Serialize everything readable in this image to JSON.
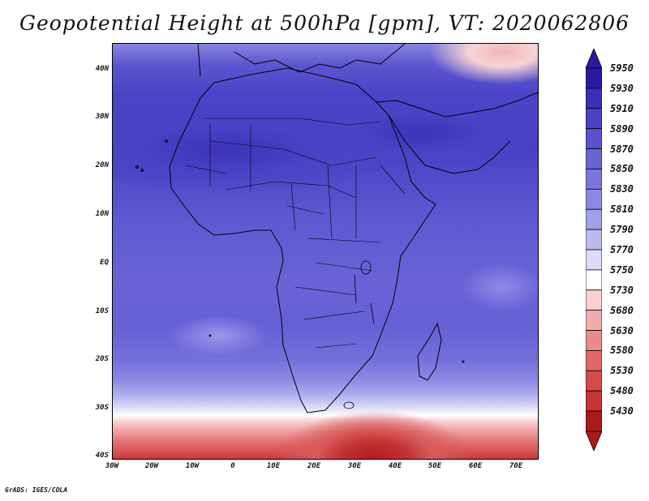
{
  "title": "Geopotential Height at 500hPa [gpm], VT: 2020062806",
  "credit": "GrADS: IGES/COLA",
  "map": {
    "lat_labels": [
      "40N",
      "30N",
      "20N",
      "10N",
      "EQ",
      "10S",
      "20S",
      "30S",
      "40S"
    ],
    "lon_labels": [
      "30W",
      "20W",
      "10W",
      "0",
      "10E",
      "20E",
      "30E",
      "40E",
      "50E",
      "60E",
      "70E"
    ],
    "lat_range": [
      -40,
      45
    ],
    "lon_range": [
      -30,
      75
    ]
  },
  "colorbar": {
    "levels": [
      "5950",
      "5930",
      "5910",
      "5890",
      "5870",
      "5850",
      "5830",
      "5810",
      "5790",
      "5770",
      "5750",
      "5730",
      "5680",
      "5630",
      "5580",
      "5530",
      "5480",
      "5430"
    ],
    "colors": [
      "#2a1aa3",
      "#3a2fb5",
      "#4b41c3",
      "#5a52cc",
      "#6964d4",
      "#7a76dc",
      "#8d89e3",
      "#a3a0ea",
      "#bcbaf1",
      "#dcdbf8",
      "#ffffff",
      "#f9d1d1",
      "#f1adad",
      "#ea8a8a",
      "#e26868",
      "#d84a4a",
      "#c83333",
      "#a81b1b"
    ]
  }
}
